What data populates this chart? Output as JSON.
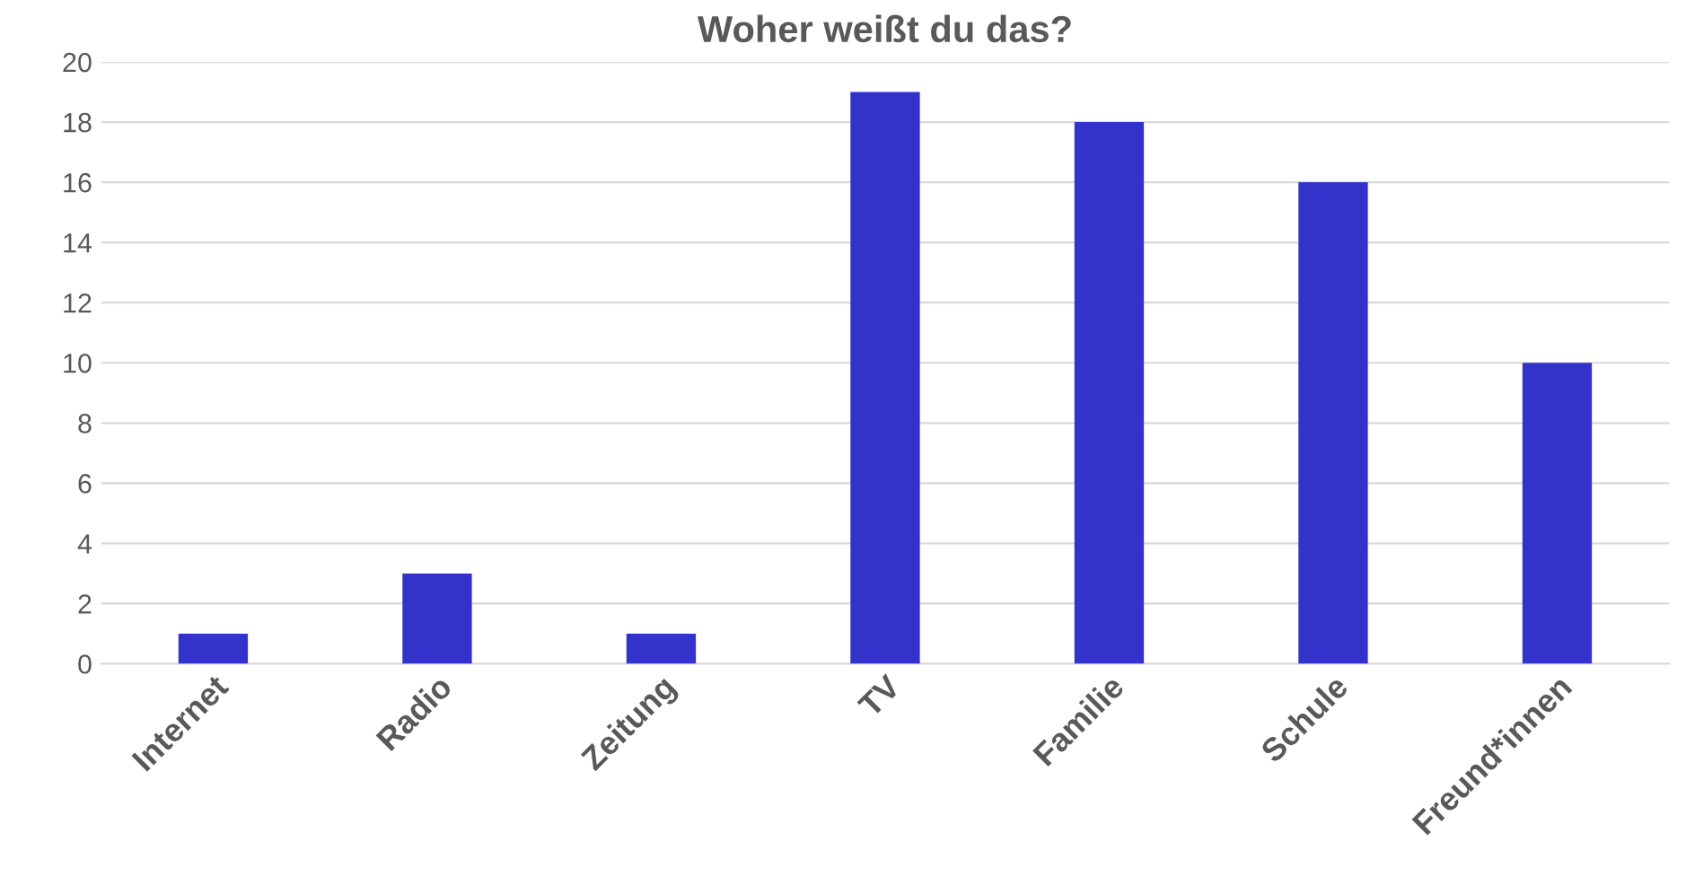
{
  "chart_data": {
    "type": "bar",
    "title": "Woher weißt du das?",
    "categories": [
      "Internet",
      "Radio",
      "Zeitung",
      "TV",
      "Familie",
      "Schule",
      "Freund*innen"
    ],
    "values": [
      1,
      3,
      1,
      19,
      18,
      16,
      10
    ],
    "color": "#3333cc",
    "ylim": [
      0,
      20
    ],
    "yticks": [
      0,
      2,
      4,
      6,
      8,
      10,
      12,
      14,
      16,
      18,
      20
    ],
    "grid": "y",
    "legend": false
  }
}
